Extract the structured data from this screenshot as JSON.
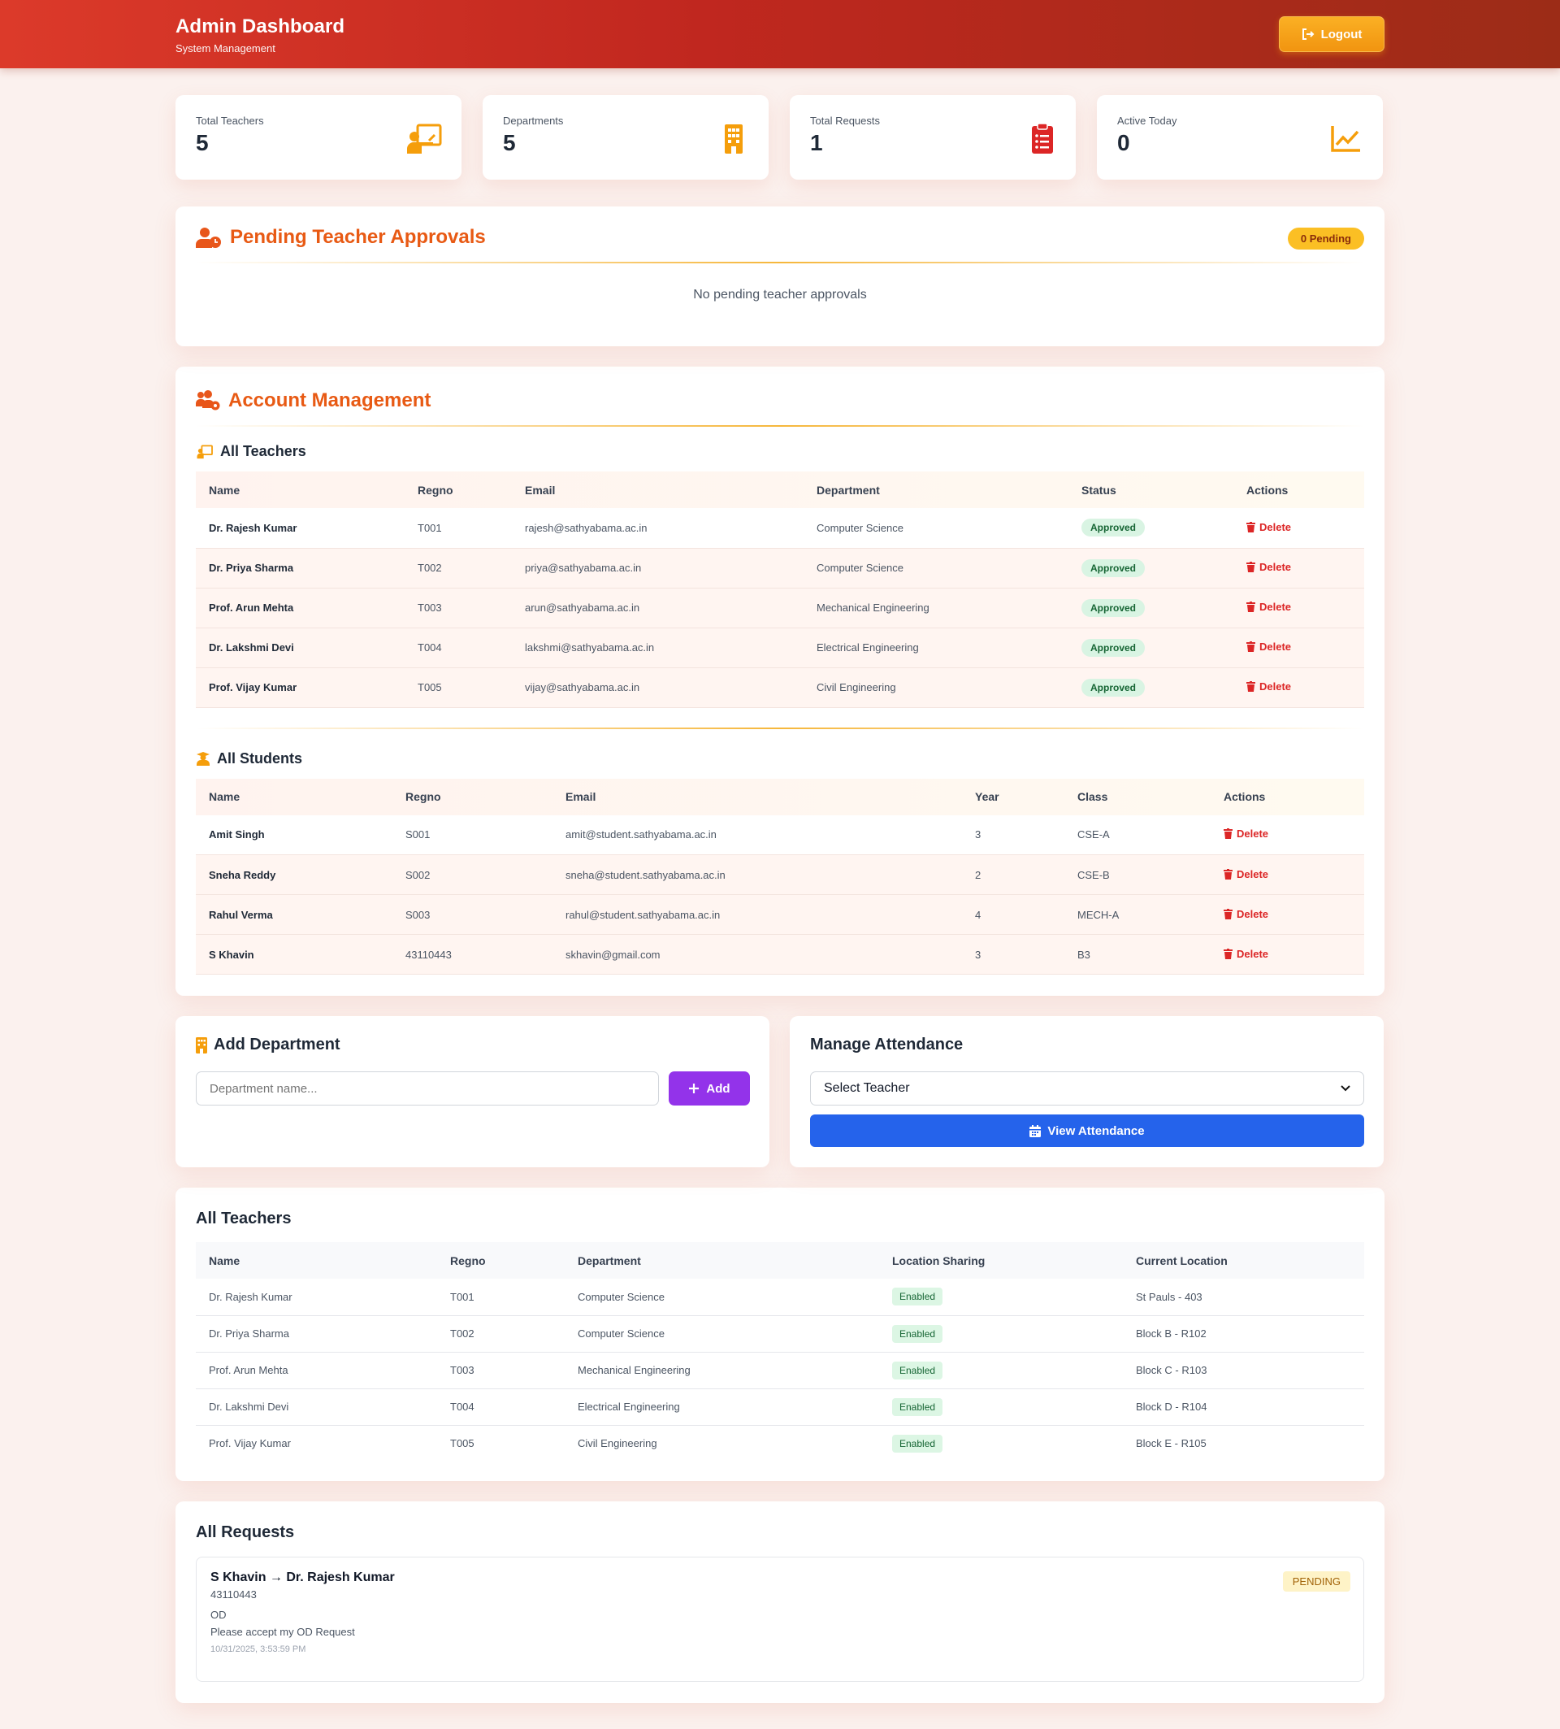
{
  "header": {
    "title": "Admin Dashboard",
    "subtitle": "System Management",
    "logout_label": "Logout"
  },
  "stats": [
    {
      "label": "Total Teachers",
      "value": "5",
      "icon": "chalkboard-teacher-icon"
    },
    {
      "label": "Departments",
      "value": "5",
      "icon": "building-icon"
    },
    {
      "label": "Total Requests",
      "value": "1",
      "icon": "clipboard-list-icon"
    },
    {
      "label": "Active Today",
      "value": "0",
      "icon": "chart-line-icon"
    }
  ],
  "pending": {
    "title": "Pending Teacher Approvals",
    "badge": "0 Pending",
    "empty": "No pending teacher approvals"
  },
  "accounts": {
    "title": "Account Management",
    "teachers_title": "All Teachers",
    "teachers_headers": [
      "Name",
      "Regno",
      "Email",
      "Department",
      "Status",
      "Actions"
    ],
    "teachers": [
      {
        "name": "Dr. Rajesh Kumar",
        "regno": "T001",
        "email": "rajesh@sathyabama.ac.in",
        "dept": "Computer Science",
        "status": "Approved",
        "action": "Delete"
      },
      {
        "name": "Dr. Priya Sharma",
        "regno": "T002",
        "email": "priya@sathyabama.ac.in",
        "dept": "Computer Science",
        "status": "Approved",
        "action": "Delete"
      },
      {
        "name": "Prof. Arun Mehta",
        "regno": "T003",
        "email": "arun@sathyabama.ac.in",
        "dept": "Mechanical Engineering",
        "status": "Approved",
        "action": "Delete"
      },
      {
        "name": "Dr. Lakshmi Devi",
        "regno": "T004",
        "email": "lakshmi@sathyabama.ac.in",
        "dept": "Electrical Engineering",
        "status": "Approved",
        "action": "Delete"
      },
      {
        "name": "Prof. Vijay Kumar",
        "regno": "T005",
        "email": "vijay@sathyabama.ac.in",
        "dept": "Civil Engineering",
        "status": "Approved",
        "action": "Delete"
      }
    ],
    "students_title": "All Students",
    "students_headers": [
      "Name",
      "Regno",
      "Email",
      "Year",
      "Class",
      "Actions"
    ],
    "students": [
      {
        "name": "Amit Singh",
        "regno": "S001",
        "email": "amit@student.sathyabama.ac.in",
        "year": "3",
        "class": "CSE-A",
        "action": "Delete"
      },
      {
        "name": "Sneha Reddy",
        "regno": "S002",
        "email": "sneha@student.sathyabama.ac.in",
        "year": "2",
        "class": "CSE-B",
        "action": "Delete"
      },
      {
        "name": "Rahul Verma",
        "regno": "S003",
        "email": "rahul@student.sathyabama.ac.in",
        "year": "4",
        "class": "MECH-A",
        "action": "Delete"
      },
      {
        "name": "S Khavin",
        "regno": "43110443",
        "email": "skhavin@gmail.com",
        "year": "3",
        "class": "B3",
        "action": "Delete"
      }
    ]
  },
  "add_department": {
    "title": "Add Department",
    "placeholder": "Department name...",
    "button": "Add"
  },
  "attendance": {
    "title": "Manage Attendance",
    "select_value": "Select Teacher",
    "button": "View Attendance"
  },
  "locations": {
    "title": "All Teachers",
    "headers": [
      "Name",
      "Regno",
      "Department",
      "Location Sharing",
      "Current Location"
    ],
    "rows": [
      {
        "name": "Dr. Rajesh Kumar",
        "regno": "T001",
        "dept": "Computer Science",
        "sharing": "Enabled",
        "location": "St Pauls - 403"
      },
      {
        "name": "Dr. Priya Sharma",
        "regno": "T002",
        "dept": "Computer Science",
        "sharing": "Enabled",
        "location": "Block B - R102"
      },
      {
        "name": "Prof. Arun Mehta",
        "regno": "T003",
        "dept": "Mechanical Engineering",
        "sharing": "Enabled",
        "location": "Block C - R103"
      },
      {
        "name": "Dr. Lakshmi Devi",
        "regno": "T004",
        "dept": "Electrical Engineering",
        "sharing": "Enabled",
        "location": "Block D - R104"
      },
      {
        "name": "Prof. Vijay Kumar",
        "regno": "T005",
        "dept": "Civil Engineering",
        "sharing": "Enabled",
        "location": "Block E - R105"
      }
    ]
  },
  "requests": {
    "title": "All Requests",
    "items": [
      {
        "who": "S Khavin → Dr. Rajesh Kumar",
        "regno": "43110443",
        "type": "OD",
        "message": "Please accept my OD Request",
        "time": "10/31/2025, 3:53:59 PM",
        "status": "PENDING"
      }
    ]
  },
  "colors": {
    "accent": "#e85a14",
    "header_start": "#dc3a2a",
    "header_end": "#9c2c17",
    "approve": "#d9f4e3",
    "danger": "#dc2626",
    "primary": "#2563eb",
    "purple": "#9333ea"
  }
}
